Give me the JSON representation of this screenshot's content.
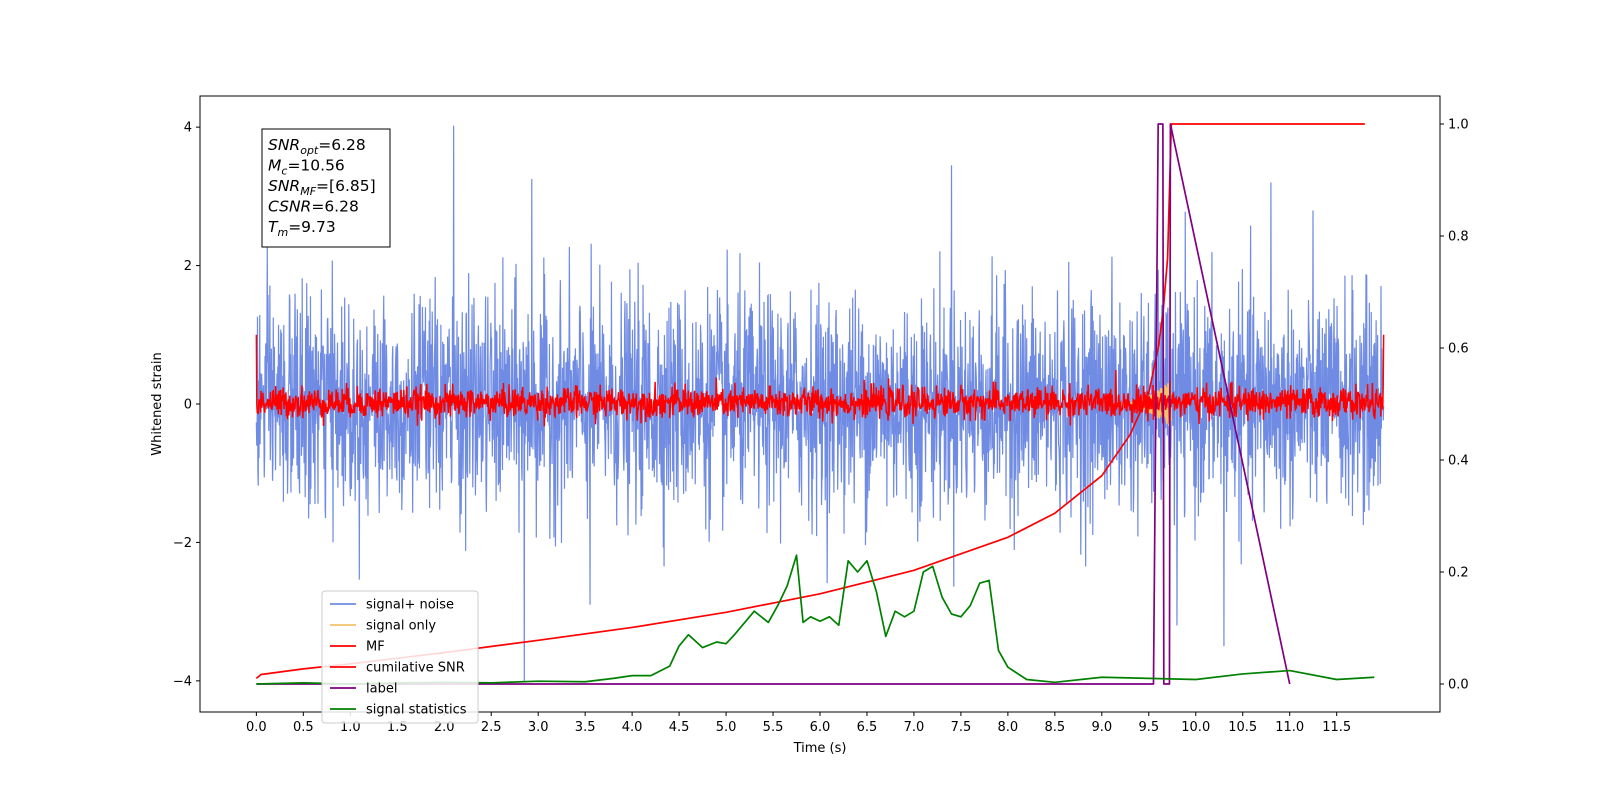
{
  "chart_data": {
    "type": "line",
    "xlabel": "Time (s)",
    "ylabel": "Whitened strain",
    "xlim": [
      -0.6,
      12.6
    ],
    "ylim": [
      -4.45,
      4.45
    ],
    "y2lim": [
      -0.05,
      1.05
    ],
    "x_ticks": [
      0.0,
      0.5,
      1.0,
      1.5,
      2.0,
      2.5,
      3.0,
      3.5,
      4.0,
      4.5,
      5.0,
      5.5,
      6.0,
      6.5,
      7.0,
      7.5,
      8.0,
      8.5,
      9.0,
      9.5,
      10.0,
      10.5,
      11.0,
      11.5
    ],
    "x_tick_labels": [
      "0.0",
      "0.5",
      "1.0",
      "1.5",
      "2.0",
      "2.5",
      "3.0",
      "3.5",
      "4.0",
      "4.5",
      "5.0",
      "5.5",
      "6.0",
      "6.5",
      "7.0",
      "7.5",
      "8.0",
      "8.5",
      "9.0",
      "9.5",
      "10.0",
      "10.5",
      "11.0",
      "11.5"
    ],
    "y_ticks": [
      -4,
      -2,
      0,
      2,
      4
    ],
    "y_tick_labels": [
      "−4",
      "−2",
      "0",
      "2",
      "4"
    ],
    "y2_ticks": [
      0.0,
      0.2,
      0.4,
      0.6,
      0.8,
      1.0
    ],
    "y2_tick_labels": [
      "0.0",
      "0.2",
      "0.4",
      "0.6",
      "0.8",
      "1.0"
    ],
    "annotation": [
      {
        "sym": "SNR",
        "sub": "opt",
        "val": "=6.28"
      },
      {
        "sym": "M",
        "sub": "c",
        "val": "=10.56"
      },
      {
        "sym": "SNR",
        "sub": "MF",
        "val": "=[6.85]"
      },
      {
        "sym": "CSNR",
        "sub": "",
        "val": "=6.28"
      },
      {
        "sym": "T",
        "sub": "m",
        "val": "=9.73"
      }
    ],
    "legend_position": "lower left",
    "series": [
      {
        "name": "signal+ noise",
        "color": "#6f8be3",
        "axis": "left",
        "kind": "noise",
        "x_range": [
          0.0,
          12.0
        ],
        "sigma": 0.78,
        "notable_peaks": [
          {
            "x": 2.1,
            "y": 4.02
          },
          {
            "x": 2.93,
            "y": 3.25
          },
          {
            "x": 7.4,
            "y": 3.45
          },
          {
            "x": 10.8,
            "y": 3.2
          },
          {
            "x": 2.85,
            "y": -4.02
          },
          {
            "x": 3.55,
            "y": -2.9
          },
          {
            "x": 9.8,
            "y": -3.2
          },
          {
            "x": 10.3,
            "y": -3.5
          }
        ]
      },
      {
        "name": "signal only",
        "color": "#f5c26b",
        "axis": "left",
        "kind": "chirp",
        "x_range": [
          9.1,
          9.74
        ],
        "peak_amplitude": 0.35
      },
      {
        "name": "MF",
        "color": "#ff0000",
        "axis": "left",
        "kind": "noise",
        "x_range": [
          0.0,
          12.0
        ],
        "sigma": 0.11,
        "edge_values": [
          {
            "x": 0.0,
            "y": 1.0
          },
          {
            "x": 12.0,
            "y": 1.0
          }
        ]
      },
      {
        "name": "cumilative SNR",
        "color": "#ff0000",
        "axis": "right",
        "x": [
          0.0,
          0.05,
          0.5,
          1.0,
          2.0,
          3.0,
          4.0,
          5.0,
          6.0,
          7.0,
          8.0,
          8.5,
          9.0,
          9.3,
          9.5,
          9.6,
          9.65,
          9.7,
          9.74,
          11.8
        ],
        "values": [
          0.01,
          0.017,
          0.027,
          0.036,
          0.056,
          0.078,
          0.101,
          0.128,
          0.161,
          0.203,
          0.262,
          0.305,
          0.372,
          0.445,
          0.52,
          0.6,
          0.66,
          0.76,
          1.0,
          1.0
        ]
      },
      {
        "name": "label",
        "color": "#800080",
        "axis": "right",
        "x": [
          0.0,
          9.55,
          9.6,
          9.65,
          9.66,
          9.72,
          9.73,
          11.0
        ],
        "values": [
          0.0,
          0.0,
          1.0,
          1.0,
          0.0,
          0.0,
          1.0,
          0.0
        ]
      },
      {
        "name": "signal statistics",
        "color": "#008000",
        "axis": "right",
        "x": [
          0.0,
          0.5,
          1.0,
          1.5,
          2.0,
          2.5,
          3.0,
          3.5,
          3.8,
          4.0,
          4.2,
          4.4,
          4.5,
          4.6,
          4.75,
          4.9,
          5.0,
          5.1,
          5.3,
          5.45,
          5.55,
          5.65,
          5.75,
          5.82,
          5.9,
          6.0,
          6.1,
          6.2,
          6.3,
          6.4,
          6.5,
          6.6,
          6.7,
          6.8,
          6.9,
          7.0,
          7.1,
          7.2,
          7.3,
          7.4,
          7.5,
          7.6,
          7.7,
          7.8,
          7.9,
          8.0,
          8.2,
          8.5,
          9.0,
          9.5,
          10.0,
          10.5,
          11.0,
          11.5,
          11.9
        ],
        "values": [
          0.0,
          0.002,
          0.0,
          0.002,
          0.003,
          0.002,
          0.005,
          0.004,
          0.01,
          0.015,
          0.015,
          0.032,
          0.068,
          0.088,
          0.065,
          0.075,
          0.072,
          0.09,
          0.13,
          0.11,
          0.14,
          0.175,
          0.23,
          0.11,
          0.12,
          0.112,
          0.12,
          0.105,
          0.22,
          0.2,
          0.22,
          0.165,
          0.085,
          0.13,
          0.12,
          0.13,
          0.2,
          0.21,
          0.155,
          0.125,
          0.12,
          0.14,
          0.18,
          0.185,
          0.06,
          0.03,
          0.008,
          0.003,
          0.012,
          0.01,
          0.008,
          0.018,
          0.024,
          0.008,
          0.012
        ]
      }
    ]
  }
}
